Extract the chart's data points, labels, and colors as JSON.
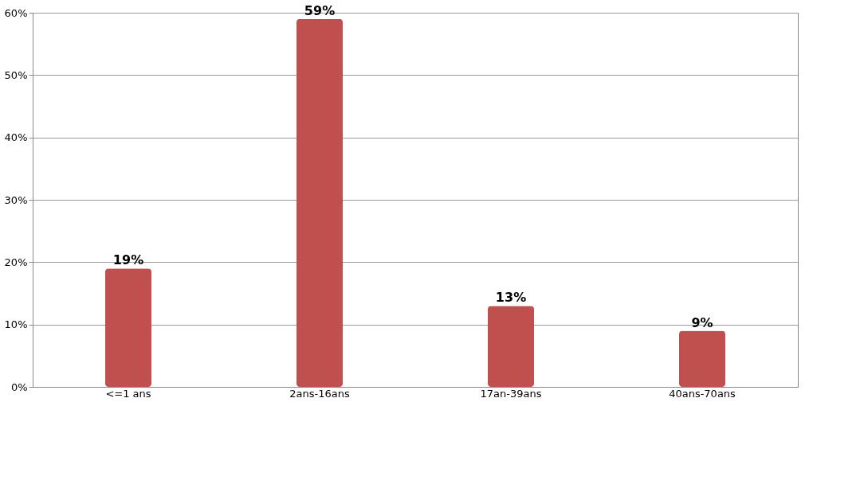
{
  "chart_data": {
    "type": "bar",
    "categories": [
      "<=1 ans",
      "2ans-16ans",
      "17an-39ans",
      "40ans-70ans"
    ],
    "values": [
      19,
      59,
      13,
      9
    ],
    "value_labels": [
      "19%",
      "59%",
      "13%",
      "9%"
    ],
    "color": "#c0504d",
    "ylim": [
      0,
      60
    ],
    "yticks": [
      {
        "value": 0,
        "label": "0%"
      },
      {
        "value": 10,
        "label": "10%"
      },
      {
        "value": 20,
        "label": "20%"
      },
      {
        "value": 30,
        "label": "30%"
      },
      {
        "value": 40,
        "label": "40%"
      },
      {
        "value": 50,
        "label": "50%"
      },
      {
        "value": 60,
        "label": "60%"
      }
    ],
    "grid": "y"
  }
}
